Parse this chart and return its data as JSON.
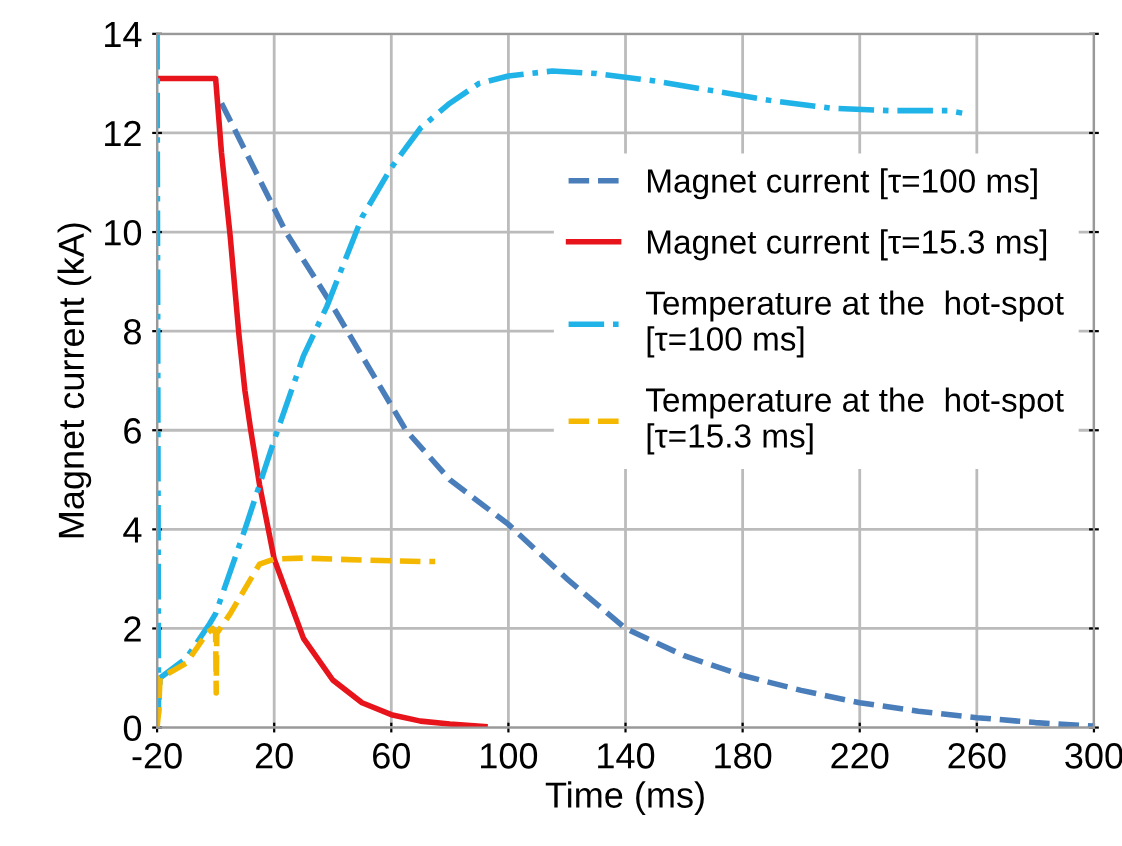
{
  "chart_data": {
    "type": "line",
    "xlabel": "Time (ms)",
    "ylabel": "Magnet current (kA)",
    "xlim": [
      -20,
      300
    ],
    "xticks": [
      -20,
      20,
      60,
      100,
      140,
      180,
      220,
      260,
      300
    ],
    "ylim": [
      0,
      14
    ],
    "yticks": [
      0,
      2,
      4,
      6,
      8,
      10,
      12,
      14
    ],
    "grid": true,
    "legend": "right",
    "marker": "none",
    "series": [
      {
        "name": "Magnet current [τ=100 ms]",
        "color": "#4a7ebb",
        "line_style": "dashed",
        "x": [
          2,
          24,
          40,
          65,
          80,
          100,
          120,
          140,
          160,
          180,
          200,
          220,
          240,
          260,
          280,
          300
        ],
        "values": [
          12.6,
          10,
          8.5,
          6,
          5,
          4.1,
          3.0,
          2.0,
          1.45,
          1.05,
          0.75,
          0.5,
          0.33,
          0.2,
          0.1,
          0.03
        ]
      },
      {
        "name": "Magnet current [τ=15.3 ms]",
        "color": "#e8141b",
        "line_style": "solid",
        "x": [
          -20,
          0,
          2,
          5,
          8,
          10,
          12,
          15,
          20,
          25,
          30,
          40,
          50,
          60,
          70,
          80,
          92
        ],
        "values": [
          13.1,
          13.1,
          11.6,
          9.9,
          7.9,
          6.8,
          6.0,
          4.9,
          3.4,
          2.6,
          1.8,
          0.96,
          0.5,
          0.26,
          0.13,
          0.07,
          0.02
        ]
      },
      {
        "name": "Temperature at the  hot-spot\n[τ=100 ms]",
        "color": "#1fb3e8",
        "line_style": "dashdot",
        "x": [
          -20,
          -19.5,
          -19,
          -10,
          -2,
          0,
          10,
          20,
          30,
          38,
          50,
          60,
          70,
          80,
          90,
          100,
          115,
          130,
          150,
          170,
          190,
          210,
          230,
          250,
          255
        ],
        "values": [
          14,
          0.3,
          1.0,
          1.4,
          2.1,
          2.3,
          4.0,
          5.8,
          7.5,
          8.5,
          10.3,
          11.3,
          12.1,
          12.6,
          13.0,
          13.15,
          13.25,
          13.2,
          13.05,
          12.85,
          12.65,
          12.5,
          12.45,
          12.45,
          12.4
        ]
      },
      {
        "name": "Temperature at the  hot-spot\n[τ=15.3 ms]",
        "color": "#f5b800",
        "line_style": "dashed",
        "x": [
          -20,
          -19.5,
          -19,
          -10,
          -3,
          -1,
          0,
          0.2,
          0.4,
          5,
          10,
          15,
          20,
          30,
          50,
          70,
          75
        ],
        "values": [
          0,
          0.3,
          1.0,
          1.3,
          1.9,
          2.0,
          1.9,
          0.7,
          1.9,
          2.3,
          2.8,
          3.3,
          3.4,
          3.42,
          3.38,
          3.35,
          3.35
        ]
      }
    ]
  }
}
